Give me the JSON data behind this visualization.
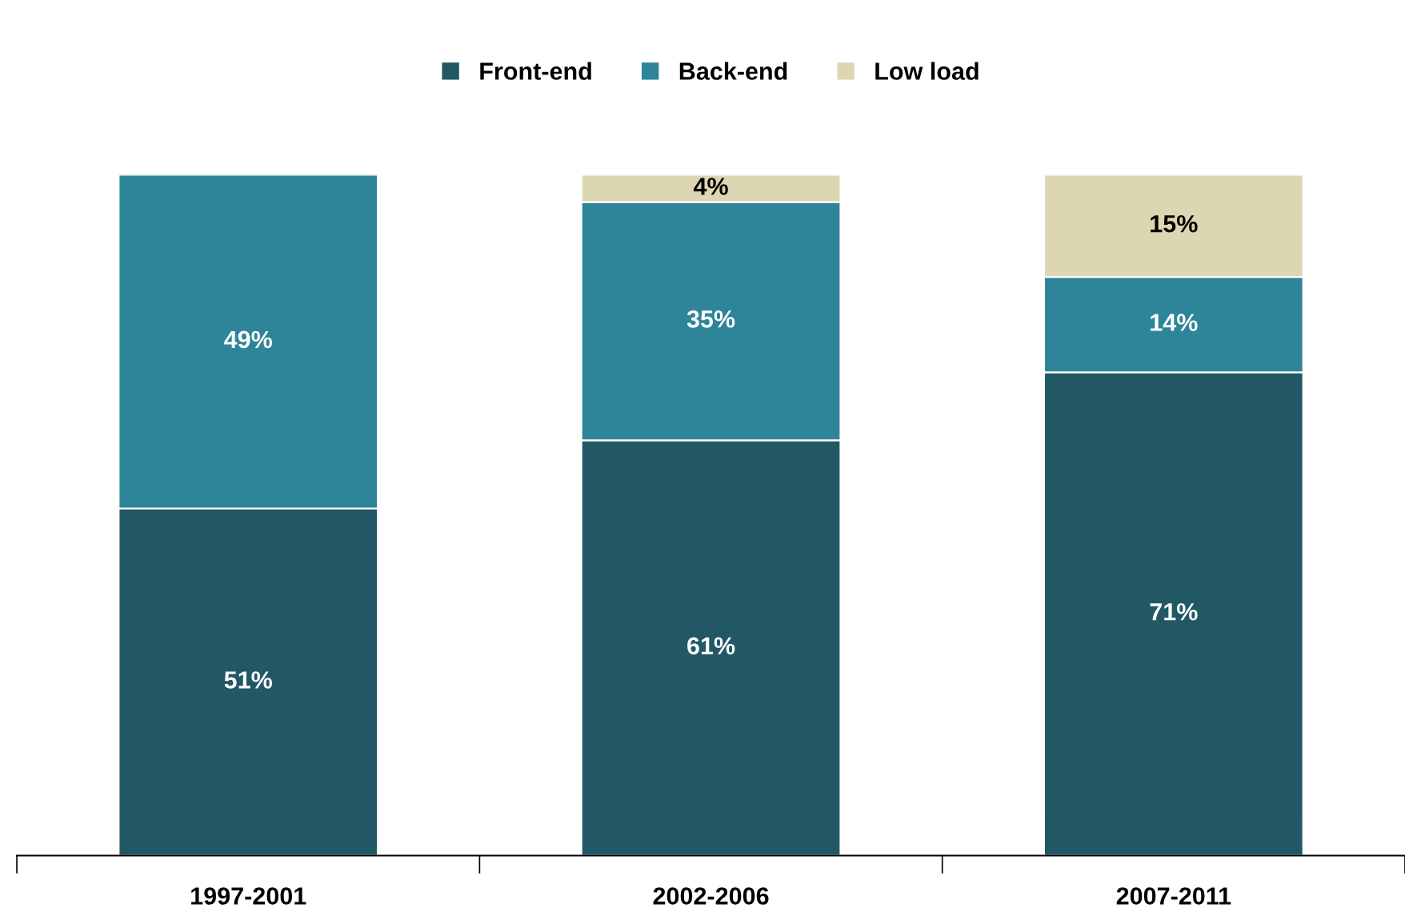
{
  "chart_data": {
    "type": "bar",
    "stacked": true,
    "categories": [
      "1997-2001",
      "2002-2006",
      "2007-2011"
    ],
    "series": [
      {
        "name": "Front-end",
        "color": "#225866",
        "values": [
          51,
          61,
          71
        ],
        "value_labels": [
          "51%",
          "61%",
          "71%"
        ]
      },
      {
        "name": "Back-end",
        "color": "#2e8499",
        "values": [
          49,
          35,
          14
        ],
        "value_labels": [
          "49%",
          "35%",
          "14%"
        ]
      },
      {
        "name": "Low load",
        "color": "#ddd6b2",
        "values": [
          null,
          4,
          15
        ],
        "value_labels": [
          null,
          "4%",
          "15%"
        ]
      }
    ],
    "legend": "top",
    "grid": false
  }
}
